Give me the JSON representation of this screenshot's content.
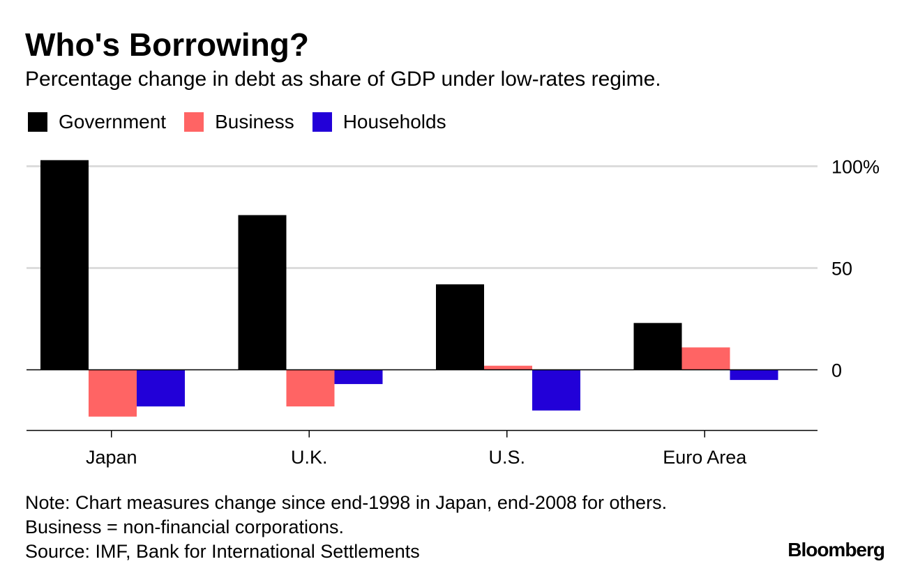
{
  "chart_data": {
    "type": "bar",
    "title": "Who's Borrowing?",
    "subtitle": "Percentage change in debt as share of GDP under low-rates regime.",
    "categories": [
      "Japan",
      "U.K.",
      "U.S.",
      "Euro Area"
    ],
    "series": [
      {
        "name": "Government",
        "color": "#000000",
        "values": [
          103,
          76,
          42,
          23
        ]
      },
      {
        "name": "Business",
        "color": "#ff6464",
        "values": [
          -23,
          -18,
          2,
          11
        ]
      },
      {
        "name": "Households",
        "color": "#2200d8",
        "values": [
          -18,
          -7,
          -20,
          -5
        ]
      }
    ],
    "yticks": [
      0,
      50,
      100
    ],
    "ytick_labels": [
      "0",
      "50",
      "100%"
    ],
    "ylim": [
      -30,
      100
    ],
    "grid": true,
    "legend_position": "top-left",
    "xlabel": "",
    "ylabel": ""
  },
  "notes": [
    "Note: Chart measures change since end-1998 in Japan, end-2008 for others.",
    "Business = non-financial corporations.",
    "Source: IMF, Bank for International Settlements"
  ],
  "brand": "Bloomberg"
}
